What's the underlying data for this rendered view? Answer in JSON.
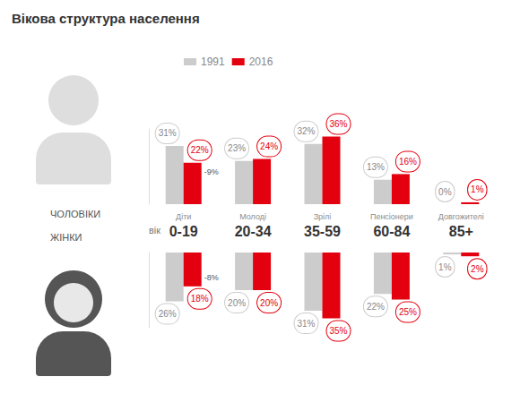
{
  "title": "Вікова структура населення",
  "age_label": "вік",
  "chart_data": [
    {
      "type": "bar",
      "title": "ЧОЛОВІКИ",
      "categories": [
        "Діти 0-19",
        "Молоді 20-34",
        "Зрілі 35-59",
        "Пенсіонери 60-84",
        "Довгожителі 85+"
      ],
      "series": [
        {
          "name": "1991",
          "color": "#cccccc",
          "values": [
            31,
            23,
            32,
            13,
            0
          ],
          "value_labels": [
            "31%",
            "23%",
            "32%",
            "13%",
            "0%"
          ]
        },
        {
          "name": "2016",
          "color": "#e3000f",
          "values": [
            22,
            24,
            36,
            16,
            1
          ],
          "value_labels": [
            "22%",
            "24%",
            "36%",
            "16%",
            "1%"
          ]
        }
      ],
      "annotations": [
        {
          "text": "-9%",
          "category": "Діти 0-19",
          "series": "2016"
        }
      ],
      "ylim": [
        0,
        40
      ],
      "grid": false,
      "legend": "top",
      "data_labels": true,
      "tick_labels": "x"
    },
    {
      "type": "bar",
      "title": "ЖІНКИ",
      "categories": [
        "Діти 0-19",
        "Молоді 20-34",
        "Зрілі 35-59",
        "Пенсіонери 60-84",
        "Довгожителі 85+"
      ],
      "series": [
        {
          "name": "1991",
          "color": "#cccccc",
          "values": [
            26,
            20,
            31,
            22,
            1
          ],
          "value_labels": [
            "26%",
            "20%",
            "31%",
            "22%",
            "1%"
          ]
        },
        {
          "name": "2016",
          "color": "#e3000f",
          "values": [
            18,
            20,
            35,
            25,
            2
          ],
          "value_labels": [
            "18%",
            "20%",
            "35%",
            "25%",
            "2%"
          ]
        }
      ],
      "annotations": [
        {
          "text": "-8%",
          "category": "Діти 0-19",
          "series": "2016"
        }
      ],
      "ylim": [
        0,
        40
      ],
      "grid": false,
      "data_labels": true,
      "tick_labels": false
    }
  ]
}
